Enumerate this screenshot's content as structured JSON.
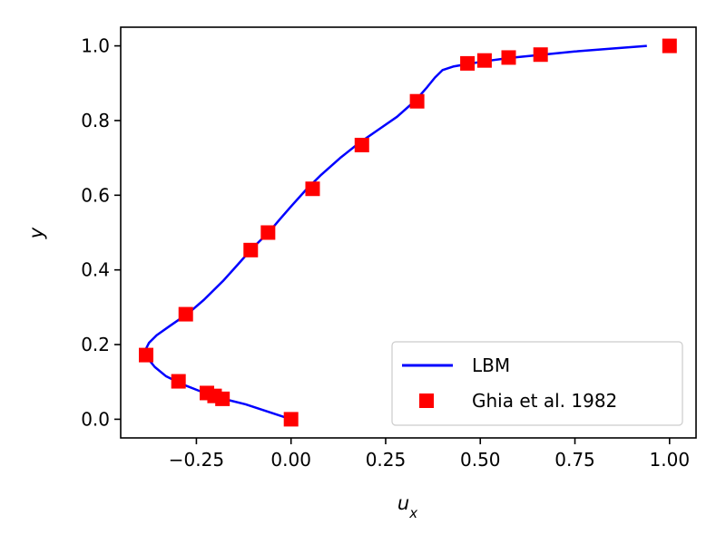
{
  "chart_data": {
    "type": "line",
    "title": "",
    "xlabel": "u",
    "xlabel_sub": "x",
    "ylabel": "y",
    "xlim": [
      -0.45,
      1.07
    ],
    "ylim": [
      -0.05,
      1.05
    ],
    "xticks": [
      -0.25,
      0.0,
      0.25,
      0.5,
      0.75,
      1.0
    ],
    "xtick_labels": [
      "−0.25",
      "0.00",
      "0.25",
      "0.50",
      "0.75",
      "1.00"
    ],
    "yticks": [
      0.0,
      0.2,
      0.4,
      0.6,
      0.8,
      1.0
    ],
    "ytick_labels": [
      "0.0",
      "0.2",
      "0.4",
      "0.6",
      "0.8",
      "1.0"
    ],
    "grid": false,
    "legend_position": "bottom-right",
    "series": [
      {
        "name": "LBM",
        "kind": "line",
        "color": "#0000ff",
        "x": [
          0.0,
          -0.06,
          -0.12,
          -0.18,
          -0.24,
          -0.29,
          -0.33,
          -0.36,
          -0.38,
          -0.385,
          -0.375,
          -0.355,
          -0.32,
          -0.27,
          -0.23,
          -0.18,
          -0.14,
          -0.105,
          -0.08,
          -0.055,
          -0.03,
          0.0,
          0.04,
          0.08,
          0.13,
          0.18,
          0.23,
          0.28,
          0.33,
          0.36,
          0.38,
          0.4,
          0.43,
          0.47,
          0.52,
          0.58,
          0.66,
          0.75,
          0.85,
          0.94
        ],
        "y": [
          0.0,
          0.02,
          0.04,
          0.055,
          0.075,
          0.095,
          0.115,
          0.14,
          0.165,
          0.185,
          0.205,
          0.225,
          0.25,
          0.285,
          0.32,
          0.37,
          0.415,
          0.455,
          0.48,
          0.505,
          0.535,
          0.57,
          0.615,
          0.655,
          0.7,
          0.74,
          0.775,
          0.81,
          0.855,
          0.89,
          0.915,
          0.935,
          0.945,
          0.952,
          0.96,
          0.968,
          0.976,
          0.985,
          0.993,
          1.0
        ]
      },
      {
        "name": "Ghia et al. 1982",
        "kind": "scatter",
        "color": "#ff0000",
        "marker": "square",
        "x": [
          1.0,
          0.65928,
          0.57492,
          0.51117,
          0.46604,
          0.33304,
          0.18719,
          0.05702,
          -0.0608,
          -0.10648,
          -0.27805,
          -0.38289,
          -0.2973,
          -0.2222,
          -0.20196,
          -0.18109,
          0.0
        ],
        "y": [
          1.0,
          0.9766,
          0.9688,
          0.9609,
          0.9531,
          0.8516,
          0.7344,
          0.6172,
          0.5,
          0.4531,
          0.2813,
          0.1719,
          0.1016,
          0.0703,
          0.0625,
          0.0547,
          0.0
        ]
      }
    ],
    "legend": [
      {
        "label": "LBM",
        "symbol": "line",
        "color": "#0000ff"
      },
      {
        "label": "Ghia et al. 1982",
        "symbol": "square",
        "color": "#ff0000"
      }
    ]
  }
}
